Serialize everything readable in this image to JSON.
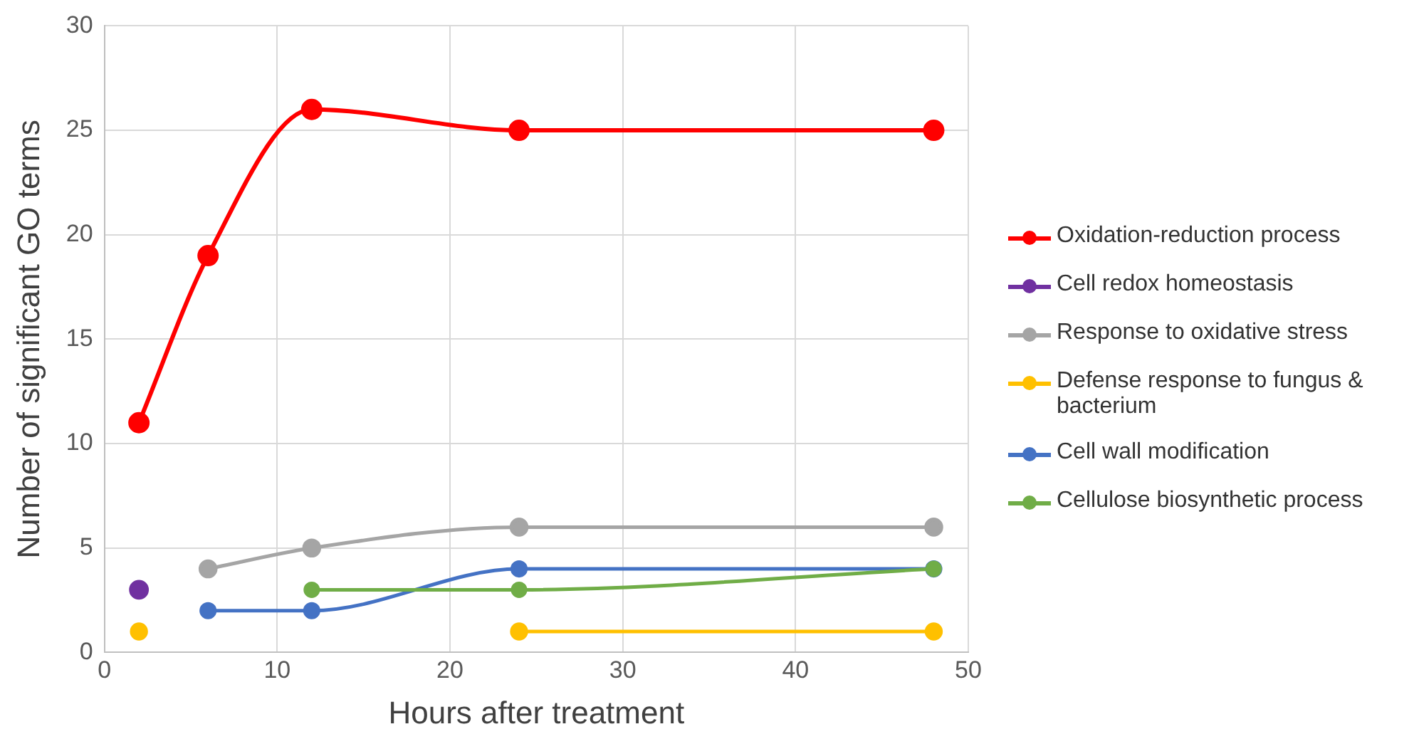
{
  "chart_data": {
    "type": "line",
    "xlabel": "Hours after treatment",
    "ylabel": "Number of significant GO terms",
    "x": [
      2,
      6,
      12,
      24,
      48
    ],
    "series": [
      {
        "name": "Oxidation-reduction process",
        "color": "#ff0000",
        "values": [
          11,
          19,
          26,
          25,
          25
        ]
      },
      {
        "name": "Cell redox homeostasis",
        "color": "#7030a0",
        "values": [
          3,
          null,
          null,
          null,
          null
        ]
      },
      {
        "name": "Response to oxidative stress",
        "color": "#a5a5a5",
        "values": [
          null,
          4,
          5,
          6,
          6
        ]
      },
      {
        "name": "Defense response to fungus & bacterium",
        "color": "#ffc000",
        "values": [
          1,
          null,
          null,
          1,
          1
        ]
      },
      {
        "name": "Cell wall modification",
        "color": "#4472c4",
        "values": [
          null,
          2,
          2,
          4,
          4
        ]
      },
      {
        "name": "Cellulose biosynthetic process",
        "color": "#70ad47",
        "values": [
          null,
          null,
          3,
          3,
          4
        ]
      }
    ],
    "xlim": [
      0,
      50
    ],
    "xticks": [
      0,
      10,
      20,
      30,
      40,
      50
    ],
    "ylim": [
      0,
      30
    ],
    "yticks": [
      0,
      5,
      10,
      15,
      20,
      25,
      30
    ],
    "grid": true,
    "legend": "right",
    "marker": "circle",
    "line_style": "solid"
  }
}
